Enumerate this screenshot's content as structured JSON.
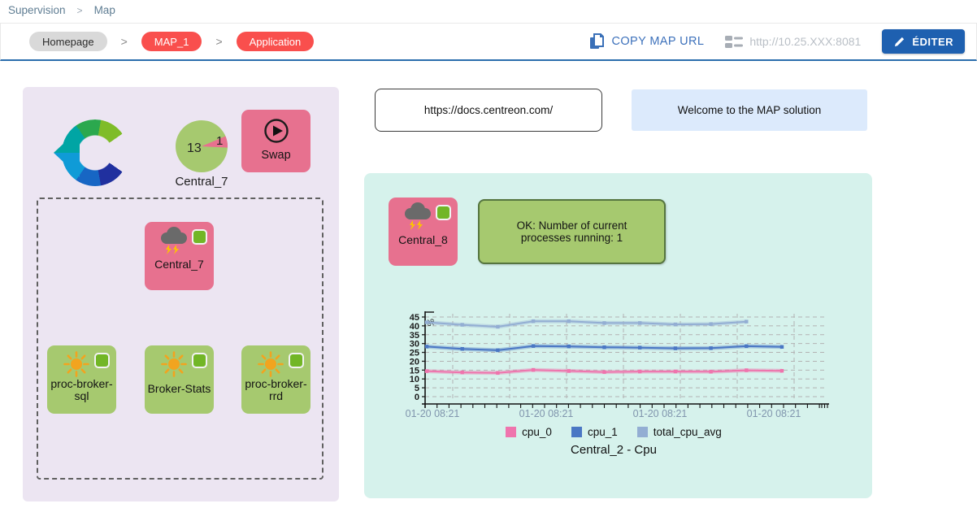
{
  "breadcrumb": {
    "section": "Supervision",
    "page": "Map",
    "separator": ">"
  },
  "toolbar": {
    "separator": ">",
    "pills": [
      {
        "label": "Homepage"
      },
      {
        "label": "MAP_1"
      },
      {
        "label": "Application"
      }
    ],
    "copy_map_url": "COPY MAP URL",
    "server_url": "http://10.25.XXX:8081",
    "edit_button": "ÉDITER"
  },
  "left_map": {
    "pie_node": {
      "label": "Central_7",
      "ok_count": "13",
      "critical_count": "1"
    },
    "swap_node": {
      "label": "Swap"
    },
    "group": {
      "central_node": {
        "label": "Central_7"
      },
      "services": [
        {
          "label": "proc-broker-sql"
        },
        {
          "label": "Broker-Stats"
        },
        {
          "label": "proc-broker-rrd"
        }
      ]
    }
  },
  "right_map": {
    "docs_link": {
      "text": "https://docs.centreon.com/"
    },
    "welcome": {
      "text": "Welcome to the MAP solution"
    },
    "central_node": {
      "label": "Central_8"
    },
    "status_box": {
      "text": "OK: Number of current processes running: 1"
    }
  },
  "colors": {
    "accent_blue": "#1e60b0",
    "link_blue": "#3d71bb",
    "pill_alert": "#f94f4d",
    "pill_default": "#d9d9d9",
    "node_alert_pink": "#e7718f",
    "node_ok_green": "#a6c96f",
    "status_ok": "#72b626",
    "panel_left_bg": "#ece5f2",
    "panel_right_bg": "#d6f2ec",
    "welcome_bg": "#dceafc",
    "header_underline": "#2a6dad"
  },
  "chart_data": {
    "type": "line",
    "title": "Central_2 - Cpu",
    "ylabel": "%",
    "ylim": [
      0,
      45
    ],
    "ytick_step": 5,
    "grid": true,
    "legend_position": "bottom",
    "x_tick_labels": [
      "01-20 08:21",
      "01-20 08:21",
      "01-20 08:21",
      "01-20 08:21"
    ],
    "series": [
      {
        "name": "cpu_0",
        "color": "#ef74ad",
        "values": [
          14.4,
          13.7,
          13.4,
          15.1,
          14.5,
          13.9,
          14.2,
          14.2,
          14.1,
          14.9,
          14.6
        ]
      },
      {
        "name": "cpu_1",
        "color": "#4a77c4",
        "values": [
          28.3,
          27.0,
          26.2,
          28.6,
          28.4,
          27.9,
          27.7,
          27.3,
          27.4,
          28.5,
          28.1
        ]
      },
      {
        "name": "total_cpu_avg",
        "color": "#93aed3",
        "values": [
          42.0,
          40.6,
          39.5,
          42.6,
          42.6,
          41.6,
          41.6,
          40.8,
          41.0,
          42.4,
          null
        ]
      }
    ]
  }
}
